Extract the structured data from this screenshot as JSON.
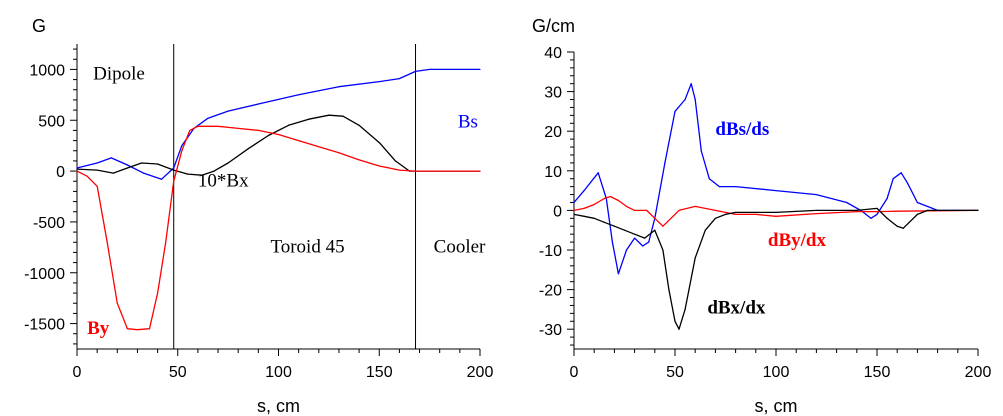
{
  "chart_data": [
    {
      "type": "line",
      "title": "",
      "ylabel": "G",
      "xlabel": "s, cm",
      "xlim": [
        0,
        200
      ],
      "ylim": [
        -1750,
        1250
      ],
      "xticks": [
        0,
        50,
        100,
        150,
        200
      ],
      "xtick_labels": [
        "0",
        "50",
        "100",
        "150",
        "200"
      ],
      "yticks": [
        1000,
        500,
        0,
        -500,
        -1000,
        -1500
      ],
      "ytick_labels": [
        "1000",
        "500",
        "0",
        "-500",
        "-1000",
        "-1500"
      ],
      "grid": false,
      "vlines": [
        48,
        168
      ],
      "region_labels": [
        {
          "text": "Dipole",
          "x": 8,
          "y": 900,
          "color": "#000000",
          "bold": false
        },
        {
          "text": "Toroid 45",
          "x": 96,
          "y": -800,
          "color": "#000000",
          "bold": false
        },
        {
          "text": "Cooler",
          "x": 177,
          "y": -800,
          "color": "#000000",
          "bold": false
        }
      ],
      "series": [
        {
          "name": "Bs",
          "color": "#0000ff",
          "label": {
            "text": "Bs",
            "x": 189,
            "y": 430,
            "color": "#0000ff",
            "bold": false
          },
          "x": [
            0,
            10,
            17,
            25,
            33,
            42,
            48,
            52,
            58,
            65,
            75,
            90,
            110,
            130,
            150,
            160,
            168,
            175,
            185,
            200
          ],
          "y": [
            30,
            80,
            130,
            60,
            -20,
            -80,
            30,
            250,
            420,
            520,
            590,
            660,
            750,
            830,
            880,
            910,
            980,
            1000,
            1000,
            1000
          ]
        },
        {
          "name": "10*Bx",
          "color": "#000000",
          "label": {
            "text": "10*Bx",
            "x": 60,
            "y": -150,
            "color": "#000000",
            "bold": false
          },
          "x": [
            0,
            10,
            18,
            25,
            32,
            40,
            48,
            55,
            62,
            68,
            75,
            85,
            95,
            105,
            115,
            125,
            132,
            140,
            150,
            158,
            165,
            172,
            180,
            200
          ],
          "y": [
            20,
            10,
            -20,
            30,
            80,
            70,
            10,
            -30,
            -40,
            0,
            80,
            220,
            350,
            450,
            510,
            550,
            540,
            450,
            280,
            100,
            0,
            0,
            0,
            0
          ]
        },
        {
          "name": "By",
          "color": "#ff0000",
          "label": {
            "text": "By",
            "x": 5,
            "y": -1600,
            "color": "#ff0000",
            "bold": true
          },
          "x": [
            0,
            5,
            10,
            15,
            20,
            25,
            30,
            36,
            40,
            44,
            48,
            52,
            56,
            60,
            70,
            80,
            90,
            100,
            110,
            120,
            130,
            140,
            150,
            160,
            168,
            175,
            200
          ],
          "y": [
            0,
            -50,
            -150,
            -700,
            -1300,
            -1550,
            -1560,
            -1550,
            -1200,
            -700,
            -100,
            200,
            400,
            440,
            440,
            420,
            400,
            360,
            300,
            240,
            180,
            110,
            50,
            10,
            0,
            0,
            0
          ]
        }
      ]
    },
    {
      "type": "line",
      "title": "",
      "ylabel": "G/cm",
      "xlabel": "s, cm",
      "xlim": [
        0,
        200
      ],
      "ylim": [
        -35,
        40
      ],
      "xticks": [
        0,
        50,
        100,
        150,
        200
      ],
      "xtick_labels": [
        "0",
        "50",
        "100",
        "150",
        "200"
      ],
      "yticks": [
        40,
        30,
        20,
        10,
        0,
        -10,
        -20,
        -30
      ],
      "ytick_labels": [
        "40",
        "30",
        "20",
        "10",
        "0",
        "-10",
        "-20",
        "-30"
      ],
      "grid": false,
      "vlines": [],
      "region_labels": [],
      "series": [
        {
          "name": "dBs/ds",
          "color": "#0000ff",
          "label": {
            "text": "dBs/ds",
            "x": 70,
            "y": 19,
            "color": "#0000ff",
            "bold": true
          },
          "x": [
            0,
            5,
            12,
            16,
            19,
            22,
            26,
            30,
            34,
            37,
            40,
            45,
            50,
            55,
            58,
            60,
            63,
            67,
            72,
            80,
            100,
            120,
            135,
            142,
            147,
            150,
            155,
            158,
            162,
            165,
            170,
            180,
            200
          ],
          "y": [
            2,
            5,
            9.5,
            3,
            -8,
            -16,
            -10,
            -7,
            -9,
            -8,
            -2,
            12,
            25,
            28,
            32,
            28,
            15,
            8,
            6,
            6,
            5,
            4,
            2,
            0,
            -2,
            -1,
            3,
            8,
            9.5,
            7,
            2,
            0,
            0
          ]
        },
        {
          "name": "dBy/dx",
          "color": "#ff0000",
          "label": {
            "text": "dBy/dx",
            "x": 96,
            "y": -9,
            "color": "#ff0000",
            "bold": true
          },
          "x": [
            0,
            5,
            10,
            15,
            18,
            22,
            26,
            30,
            36,
            40,
            44,
            48,
            52,
            60,
            70,
            80,
            90,
            100,
            120,
            140,
            150,
            160,
            200
          ],
          "y": [
            0,
            0.5,
            1.5,
            3,
            3.5,
            2.5,
            1,
            0,
            0,
            -2,
            -4,
            -2,
            0,
            1,
            0,
            -1,
            -1,
            -1.5,
            -0.8,
            -0.3,
            -0.3,
            -0.2,
            0
          ]
        },
        {
          "name": "dBx/dx",
          "color": "#000000",
          "label": {
            "text": "dBx/dx",
            "x": 66,
            "y": -26,
            "color": "#000000",
            "bold": true
          },
          "x": [
            0,
            5,
            10,
            15,
            20,
            25,
            30,
            35,
            40,
            44,
            47,
            50,
            52,
            55,
            60,
            65,
            70,
            75,
            80,
            90,
            100,
            120,
            140,
            150,
            155,
            160,
            163,
            166,
            170,
            175,
            180,
            200
          ],
          "y": [
            -1,
            -1.5,
            -2,
            -3,
            -4,
            -5,
            -6,
            -7,
            -5,
            -10,
            -20,
            -28,
            -30,
            -25,
            -12,
            -5,
            -2,
            -1,
            -0.5,
            -0.5,
            -0.5,
            0,
            0,
            0.5,
            -2,
            -4,
            -4.5,
            -3,
            -1,
            0,
            0,
            0
          ]
        }
      ]
    }
  ]
}
